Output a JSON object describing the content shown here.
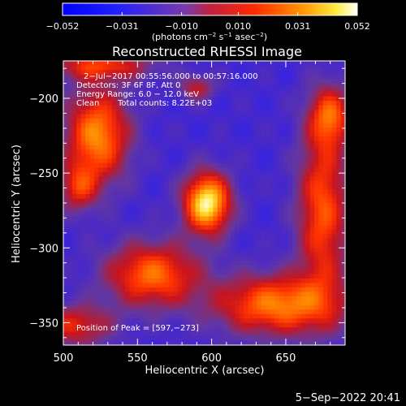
{
  "chart_data": {
    "type": "heatmap",
    "title": "Reconstructed RHESSI Image",
    "xlabel": "Heliocentric X (arcsec)",
    "ylabel": "Heliocentric Y (arcsec)",
    "xlim": [
      500,
      690
    ],
    "ylim": [
      -365,
      -175
    ],
    "x_ticks": [
      {
        "value": 500,
        "label": "500"
      },
      {
        "value": 550,
        "label": "550"
      },
      {
        "value": 600,
        "label": "600"
      },
      {
        "value": 650,
        "label": "650"
      }
    ],
    "y_ticks": [
      {
        "value": -200,
        "label": "−200"
      },
      {
        "value": -250,
        "label": "−250"
      },
      {
        "value": -300,
        "label": "−300"
      },
      {
        "value": -350,
        "label": "−350"
      }
    ],
    "colorbar": {
      "range": [
        -0.052,
        0.052
      ],
      "ticks": [
        {
          "value": -0.052,
          "label": "−0.052"
        },
        {
          "value": -0.031,
          "label": "−0.031"
        },
        {
          "value": -0.01,
          "label": "−0.010"
        },
        {
          "value": 0.01,
          "label": "0.010"
        },
        {
          "value": 0.031,
          "label": "0.031"
        },
        {
          "value": 0.052,
          "label": "0.052"
        }
      ],
      "unit_parts": {
        "a": "(photons cm",
        "b": "−2",
        "c": " s",
        "d": "−1",
        "e": " asec",
        "f": "−2",
        "g": ")"
      }
    },
    "annotations": {
      "line1": "2−Jul−2017 00:55:56.000 to 00:57:16.000",
      "line2": "Detectors: 3F 6F 8F, Att 0",
      "line3": "Energy Range: 6.0 − 12.0 keV",
      "line4a": "Clean",
      "line4b": "Total counts: 8.22E+03",
      "peak": "Position of Peak = [597,−273]"
    },
    "sources": [
      {
        "x": 597,
        "y": -270,
        "sx": 11,
        "sy": 14,
        "amp": 0.06
      },
      {
        "x": 523,
        "y": -225,
        "sx": 15,
        "sy": 22,
        "amp": 0.042
      },
      {
        "x": 510,
        "y": -260,
        "sx": 9,
        "sy": 11,
        "amp": 0.02
      },
      {
        "x": 560,
        "y": -318,
        "sx": 22,
        "sy": 15,
        "amp": 0.036
      },
      {
        "x": 645,
        "y": -338,
        "sx": 30,
        "sy": 14,
        "amp": 0.04
      },
      {
        "x": 675,
        "y": -275,
        "sx": 12,
        "sy": 40,
        "amp": 0.032
      },
      {
        "x": 680,
        "y": -212,
        "sx": 10,
        "sy": 14,
        "amp": 0.028
      },
      {
        "x": 525,
        "y": -178,
        "sx": 25,
        "sy": 7,
        "amp": 0.024
      },
      {
        "x": 590,
        "y": -193,
        "sx": 8,
        "sy": 6,
        "amp": 0.016
      },
      {
        "x": 508,
        "y": -352,
        "sx": 18,
        "sy": 10,
        "amp": 0.022
      }
    ],
    "background": -0.022
  },
  "footer": {
    "timestamp": "5−Sep−2022 20:41"
  }
}
